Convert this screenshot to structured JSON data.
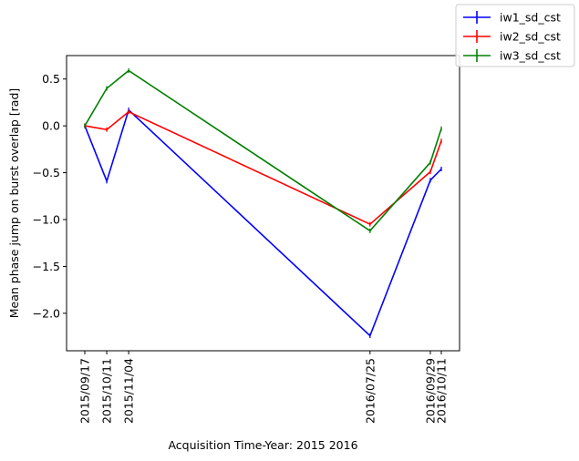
{
  "chart_data": {
    "type": "line",
    "xlabel": "Acquisition Time-Year: 2015 2016",
    "ylabel": "Mean phase jump on burst overlap [rad]",
    "x": [
      "2015/09/17",
      "2015/10/11",
      "2015/11/04",
      "2016/07/25",
      "2016/09/29",
      "2016/10/11"
    ],
    "ylim": [
      -2.4,
      0.75
    ],
    "yticks": [
      -2.0,
      -1.5,
      -1.0,
      -0.5,
      0.0,
      0.5
    ],
    "ytick_labels": [
      "−2.0",
      "−1.5",
      "−1.0",
      "−0.5",
      "0.0",
      "0.5"
    ],
    "grid": false,
    "legend_position": "top-right",
    "series": [
      {
        "name": "iw1_sd_cst",
        "color": "#0000ff",
        "values": [
          0.0,
          -0.59,
          0.17,
          -2.24,
          -0.58,
          -0.46
        ]
      },
      {
        "name": "iw2_sd_cst",
        "color": "#ff0000",
        "values": [
          0.0,
          -0.04,
          0.15,
          -1.05,
          -0.49,
          -0.16
        ]
      },
      {
        "name": "iw3_sd_cst",
        "color": "#008000",
        "values": [
          0.0,
          0.4,
          0.59,
          -1.12,
          -0.39,
          -0.03
        ]
      }
    ]
  }
}
